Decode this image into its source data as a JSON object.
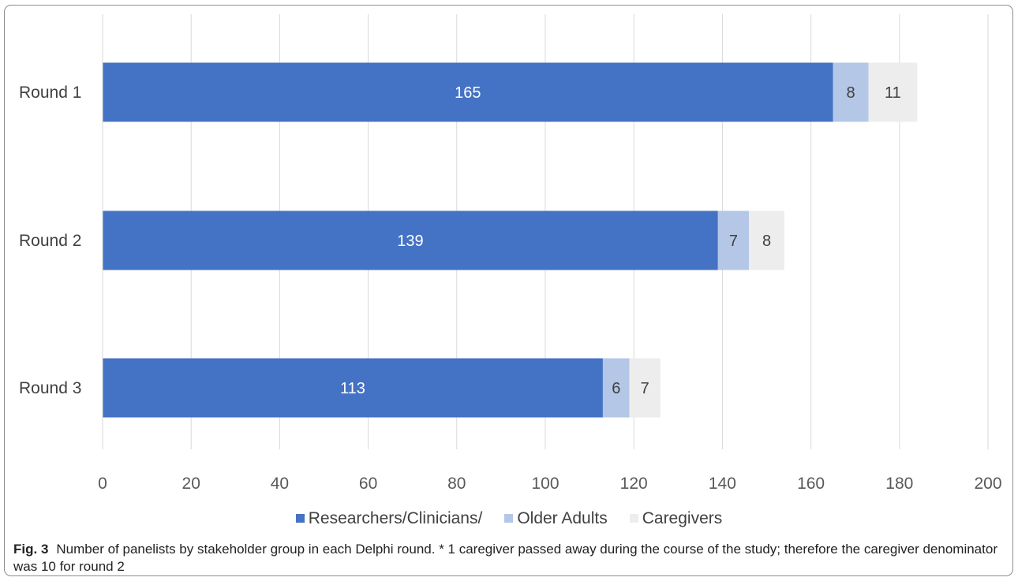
{
  "chart_data": {
    "type": "bar",
    "orientation": "horizontal",
    "stacked": true,
    "categories": [
      "Round 1",
      "Round 2",
      "Round 3"
    ],
    "series": [
      {
        "name": "Researchers/Clinicians/",
        "values": [
          165,
          139,
          113
        ],
        "color": "#4472c4",
        "label_color": "#ffffff"
      },
      {
        "name": "Older Adults",
        "values": [
          8,
          7,
          6
        ],
        "color": "#b4c7e7",
        "label_color": "#404040"
      },
      {
        "name": "Caregivers",
        "values": [
          11,
          8,
          7
        ],
        "color": "#ededed",
        "label_color": "#404040"
      }
    ],
    "xlim": [
      0,
      200
    ],
    "xticks": [
      0,
      20,
      40,
      60,
      80,
      100,
      120,
      140,
      160,
      180,
      200
    ],
    "grid": "vertical",
    "legend_position": "bottom"
  },
  "caption": {
    "label": "Fig. 3",
    "text": "Number of panelists by stakeholder group in each Delphi round. * 1 caregiver passed away during the course of the study; therefore the caregiver denominator was 10 for round 2"
  }
}
